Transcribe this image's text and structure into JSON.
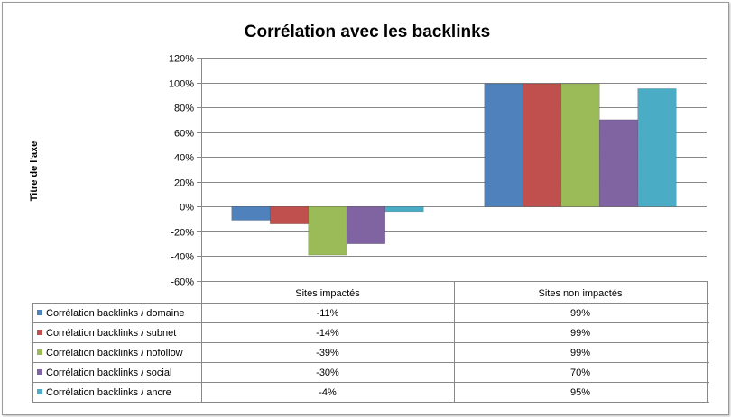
{
  "chart_data": {
    "type": "bar",
    "title": "Corrélation avec les backlinks",
    "xlabel": "",
    "ylabel": "Titre de l'axe",
    "ylim": [
      -60,
      120
    ],
    "yticks": [
      -60,
      -40,
      -20,
      0,
      20,
      40,
      60,
      80,
      100,
      120
    ],
    "ytick_suffix": "%",
    "grid": true,
    "legend": "data-table-left",
    "categories": [
      "Sites impactés",
      "Sites non impactés"
    ],
    "series": [
      {
        "name": "Corrélation backlinks / domaine",
        "values": [
          -11,
          99
        ],
        "labels": [
          "-11%",
          "99%"
        ],
        "color": "#4f81bd"
      },
      {
        "name": "Corrélation backlinks / subnet",
        "values": [
          -14,
          99
        ],
        "labels": [
          "-14%",
          "99%"
        ],
        "color": "#c0504d"
      },
      {
        "name": "Corrélation backlinks / nofollow",
        "values": [
          -39,
          99
        ],
        "labels": [
          "-39%",
          "99%"
        ],
        "color": "#9bbb59"
      },
      {
        "name": "Corrélation backlinks / social",
        "values": [
          -30,
          70
        ],
        "labels": [
          "-30%",
          "70%"
        ],
        "color": "#8064a2"
      },
      {
        "name": "Corrélation backlinks / ancre",
        "values": [
          -4,
          95
        ],
        "labels": [
          "-4%",
          "95%"
        ],
        "color": "#4bacc6"
      }
    ]
  }
}
